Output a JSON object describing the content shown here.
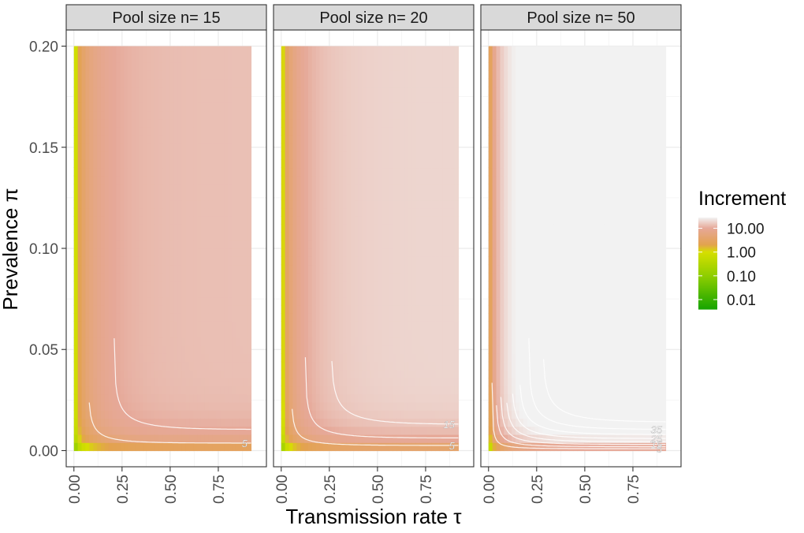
{
  "chart_data": {
    "type": "heatmap",
    "facet_variable": "Pool size n",
    "facets": [
      {
        "title": "Pool size n= 15",
        "n": 15,
        "contour_levels": [
          5,
          10,
          15
        ],
        "contour_labels": [
          {
            "text": "5",
            "level": 5
          }
        ]
      },
      {
        "title": "Pool size n= 20",
        "n": 20,
        "contour_levels": [
          5,
          10,
          15
        ],
        "contour_labels": [
          {
            "text": "5",
            "level": 5
          },
          {
            "text": "15",
            "level": 15
          }
        ]
      },
      {
        "title": "Pool size n= 50",
        "n": 50,
        "contour_levels": [
          5,
          10,
          15,
          20,
          25,
          30,
          35,
          40
        ],
        "contour_labels": [
          {
            "text": "5",
            "level": 5
          },
          {
            "text": "15",
            "level": 15
          },
          {
            "text": "25",
            "level": 25
          },
          {
            "text": "35",
            "level": 35
          }
        ]
      }
    ],
    "xlabel": "Transmission rate τ",
    "ylabel": "Prevalence π",
    "x_ticks": [
      "0.00",
      "0.25",
      "0.50",
      "0.75"
    ],
    "x_tick_values": [
      0,
      0.25,
      0.5,
      0.75
    ],
    "y_ticks": [
      "0.00",
      "0.05",
      "0.10",
      "0.15",
      "0.20"
    ],
    "y_tick_values": [
      0,
      0.05,
      0.1,
      0.15,
      0.2
    ],
    "xlim": [
      -0.04,
      1.0
    ],
    "ylim": [
      -0.008,
      0.208
    ],
    "x_range": [
      0,
      0.92
    ],
    "y_range_low": [
      0,
      0.1
    ],
    "y_range_high": [
      0.1,
      0.2
    ],
    "x_range_high": [
      0,
      0.92
    ],
    "legend": {
      "title": "Increment",
      "labels": [
        "10.00",
        "1.00",
        "0.10",
        "0.01"
      ],
      "log_values": [
        10,
        1,
        0.1,
        0.01
      ],
      "position": "right"
    },
    "colors": {
      "low": "#17a400",
      "mid_low": "#d6df00",
      "mid": "#e3a24e",
      "high": "#e6a898",
      "top": "#f2f2f2",
      "contour": "#ffffff",
      "strip_bg": "#d9d9d9",
      "grid": "#ebebeb"
    },
    "grid": true
  }
}
